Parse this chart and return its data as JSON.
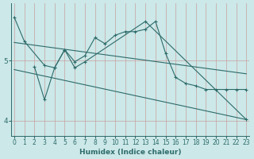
{
  "xlabel": "Humidex (Indice chaleur)",
  "series1_x": [
    0,
    1,
    3,
    4,
    5,
    6,
    7,
    8,
    9,
    10,
    11,
    12,
    13,
    14,
    15,
    16,
    17,
    18,
    19,
    20,
    21,
    22,
    23
  ],
  "series1_y": [
    5.72,
    5.32,
    4.92,
    4.88,
    5.18,
    4.98,
    5.08,
    5.38,
    5.28,
    5.42,
    5.48,
    5.48,
    5.52,
    5.65,
    5.12,
    4.72,
    4.62,
    4.58,
    4.52,
    4.52,
    4.52,
    4.52,
    4.52
  ],
  "series2_x": [
    2,
    3,
    4,
    5,
    6,
    7,
    13,
    23
  ],
  "series2_y": [
    4.9,
    4.35,
    4.88,
    5.18,
    4.88,
    4.98,
    5.65,
    4.02
  ],
  "trend1_x": [
    0,
    23
  ],
  "trend1_y": [
    5.3,
    4.78
  ],
  "trend2_x": [
    0,
    23
  ],
  "trend2_y": [
    4.85,
    4.02
  ],
  "ylim": [
    3.75,
    5.95
  ],
  "xlim": [
    -0.3,
    23.3
  ],
  "yticks": [
    4,
    5
  ],
  "xticks": [
    0,
    1,
    2,
    3,
    4,
    5,
    6,
    7,
    8,
    9,
    10,
    11,
    12,
    13,
    14,
    15,
    16,
    17,
    18,
    19,
    20,
    21,
    22,
    23
  ],
  "line_color": "#2e6b6b",
  "bg_color": "#cce8e8",
  "grid_color": "#aed0d0",
  "tick_fontsize": 5.5,
  "label_fontsize": 6.5
}
